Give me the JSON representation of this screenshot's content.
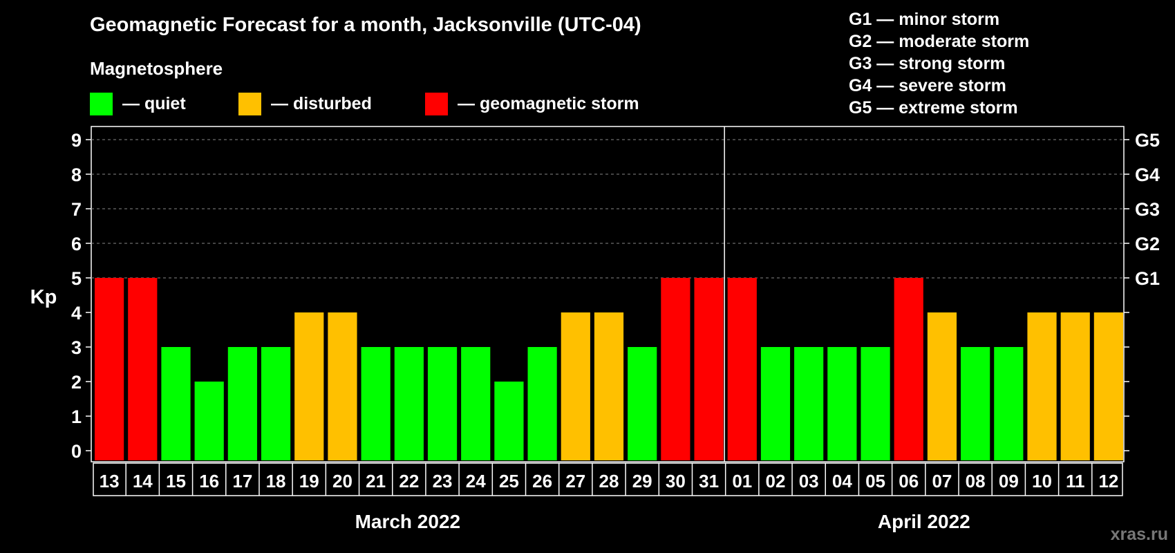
{
  "colors": {
    "quiet": "#00ff00",
    "disturbed": "#ffc000",
    "storm": "#ff0000"
  },
  "chart_data": {
    "type": "bar",
    "title": "Geomagnetic Forecast for a month, Jacksonville (UTC-04)",
    "subtitle": "Magnetosphere",
    "ylabel": "Kp",
    "ylim": [
      0,
      9
    ],
    "yticks": [
      0,
      1,
      2,
      3,
      4,
      5,
      6,
      7,
      8,
      9
    ],
    "right_ticks": [
      {
        "value": 5,
        "label": "G1"
      },
      {
        "value": 6,
        "label": "G2"
      },
      {
        "value": 7,
        "label": "G3"
      },
      {
        "value": 8,
        "label": "G4"
      },
      {
        "value": 9,
        "label": "G5"
      }
    ],
    "grid": true,
    "categories": [
      "13",
      "14",
      "15",
      "16",
      "17",
      "18",
      "19",
      "20",
      "21",
      "22",
      "23",
      "24",
      "25",
      "26",
      "27",
      "28",
      "29",
      "30",
      "31",
      "01",
      "02",
      "03",
      "04",
      "05",
      "06",
      "07",
      "08",
      "09",
      "10",
      "11",
      "12"
    ],
    "values": [
      5,
      5,
      3,
      2,
      3,
      3,
      4,
      4,
      3,
      3,
      3,
      3,
      2,
      3,
      4,
      4,
      3,
      5,
      5,
      5,
      3,
      3,
      3,
      3,
      5,
      4,
      3,
      3,
      4,
      4,
      4
    ],
    "month_groups": [
      {
        "label": "March 2022",
        "count": 19
      },
      {
        "label": "April 2022",
        "count": 12
      }
    ],
    "legend": [
      {
        "key": "quiet",
        "label": "— quiet"
      },
      {
        "key": "disturbed",
        "label": "— disturbed"
      },
      {
        "key": "storm",
        "label": "— geomagnetic storm"
      }
    ],
    "storm_scale": [
      "G1 — minor storm",
      "G2 — moderate storm",
      "G3 — strong storm",
      "G4 — severe storm",
      "G5 — extreme storm"
    ]
  },
  "watermark": "xras.ru"
}
